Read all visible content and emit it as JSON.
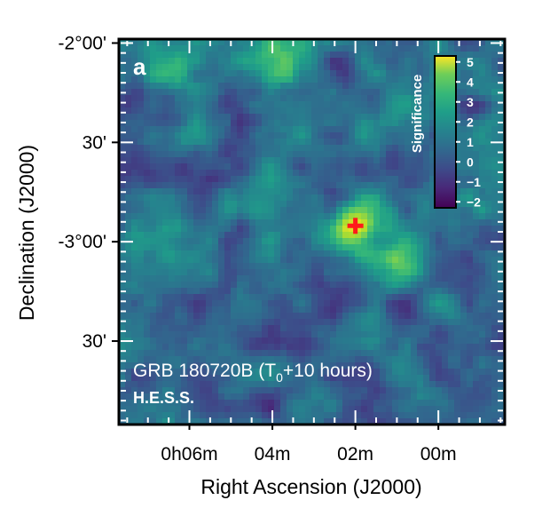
{
  "chart_data": {
    "type": "heatmap",
    "panel_label": "a",
    "title": "",
    "annotation_line1_prefix": "GRB 180720B (T",
    "annotation_line1_subscript": "0",
    "annotation_line1_suffix": "+10 hours)",
    "annotation_line2": "H.E.S.S.",
    "xlabel": "Right Ascension (J2000)",
    "ylabel": "Declination (J2000)",
    "x_ticks": [
      "0h06m",
      "04m",
      "02m",
      "00m"
    ],
    "x_tick_values_min": [
      6,
      4,
      2,
      0
    ],
    "y_ticks": [
      "-2°00'",
      "30'",
      "-3°00'",
      "30'"
    ],
    "y_tick_values_deg": [
      -2.0,
      -2.5,
      -3.0,
      -3.5
    ],
    "xlim_min": [
      7.7,
      -1.6
    ],
    "ylim_deg": [
      -3.92,
      -1.98
    ],
    "colorbar": {
      "label": "Significance",
      "min": -2.3,
      "max": 5.3,
      "ticks": [
        "5",
        "4",
        "3",
        "2",
        "1",
        "0",
        "−1",
        "−2"
      ],
      "tick_values": [
        5,
        4,
        3,
        2,
        1,
        0,
        -1,
        -2
      ],
      "colormap": "viridis"
    },
    "marker": {
      "symbol": "cross",
      "color": "#ff1a1a",
      "ra_min": 2.0,
      "dec_deg": -2.92
    },
    "peak_significance_approx": 5.0,
    "hotspots": [
      {
        "ra_min": 2.0,
        "dec_deg": -2.93,
        "sigma": 5.0
      },
      {
        "ra_min": 0.9,
        "dec_deg": -3.08,
        "sigma": 3.0
      },
      {
        "ra_min": 3.9,
        "dec_deg": -2.08,
        "sigma": 3.0
      },
      {
        "ra_min": 6.5,
        "dec_deg": -2.15,
        "sigma": 2.0
      },
      {
        "ra_min": -1.0,
        "dec_deg": -2.15,
        "sigma": 2.0
      },
      {
        "ra_min": 5.6,
        "dec_deg": -3.55,
        "sigma": 1.5
      }
    ],
    "grid": false,
    "legend": "none"
  }
}
